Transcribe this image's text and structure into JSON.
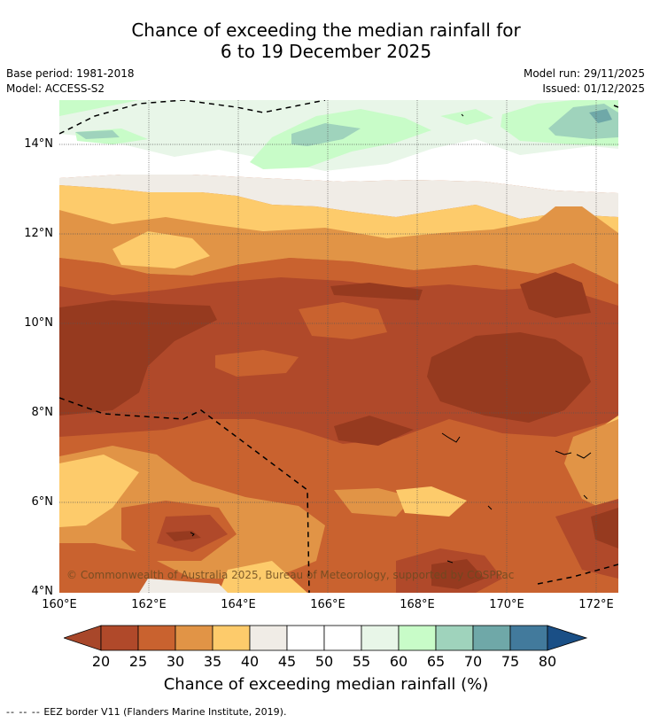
{
  "title": {
    "line1": "Chance of exceeding the median rainfall for",
    "line2": "6 to 19 December 2025"
  },
  "meta": {
    "base_period": "Base period: 1981-2018",
    "model": "Model: ACCESS-S2",
    "model_run": "Model run: 29/11/2025",
    "issued": "Issued: 01/12/2025"
  },
  "map": {
    "lat_labels": [
      "14°N",
      "12°N",
      "10°N",
      "8°N",
      "6°N",
      "4°N"
    ],
    "lon_labels": [
      "160°E",
      "162°E",
      "164°E",
      "166°E",
      "168°E",
      "170°E",
      "172°E"
    ],
    "copyright": "© Commonwealth of Australia 2025, Bureau of Meteorology, supported by COSPPac"
  },
  "colorbar": {
    "ticks": [
      "20",
      "25",
      "30",
      "35",
      "40",
      "45",
      "50",
      "55",
      "60",
      "65",
      "70",
      "75",
      "80"
    ],
    "colors": {
      "below20": "#a8472a",
      "b20_25": "#b0492a",
      "b25_30": "#c9622f",
      "b30_35": "#e19446",
      "b35_40": "#fdcb6b",
      "b40_45": "#f0ece6",
      "b45_50": "#ffffff",
      "b50_55": "#ffffff",
      "b55_60": "#e8f6e8",
      "b60_65": "#c8fcc8",
      "b65_70": "#9fd3bc",
      "b70_75": "#6fa8a8",
      "b75_80": "#427a9c",
      "above80": "#1a4f86",
      "deep": "#963a1f"
    },
    "title": "Chance of exceeding median rainfall (%)"
  },
  "footer": {
    "dashes": "--  --  --",
    "text": "EEZ border V11 (Flanders Marine Institute, 2019)."
  }
}
